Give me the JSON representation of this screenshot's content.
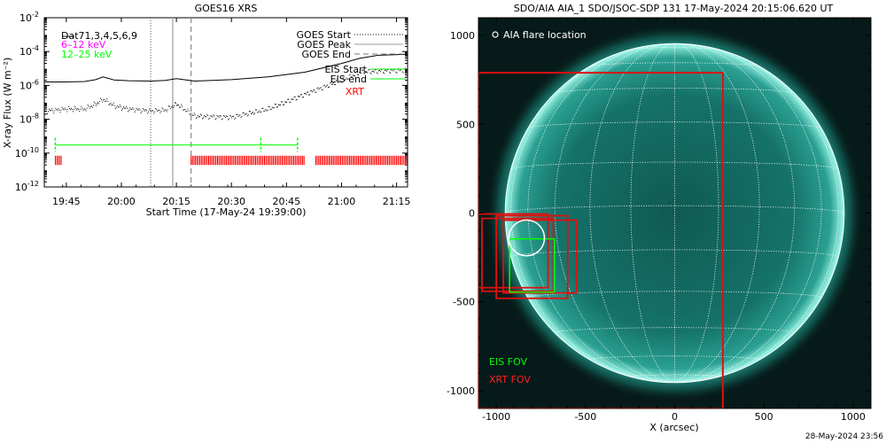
{
  "left_chart": {
    "title": "GOES16 XRS",
    "ylabel": "X-ray Flux (W m⁻²)",
    "xlabel": "Start Time (17-May-24 19:39:00)",
    "legend_left": [
      {
        "text": "D̶a̶t71,3,4,5,6,9",
        "color": "#000000"
      },
      {
        "text": "6–12 keV",
        "color": "#ff00ff"
      },
      {
        "text": "12–25 keV",
        "color": "#00ff00"
      }
    ],
    "legend_right": [
      {
        "text": "GOES Start",
        "color": "#000000",
        "dash": "2,2"
      },
      {
        "text": "GOES Peak",
        "color": "#000000",
        "dash": ""
      },
      {
        "text": "GOES End",
        "color": "#000000",
        "dash": "6,4"
      },
      {
        "text": "EIS Start",
        "color": "#000000",
        "line": "#00ff00"
      },
      {
        "text": "EIS end",
        "color": "#000000",
        "line": "#00ff00"
      },
      {
        "text": "XRT",
        "color": "#ff0000"
      }
    ]
  },
  "right_chart": {
    "title": "SDO/AIA AIA_1 SDO/JSOC-SDP 131 17-May-2024 20:15:06.620 UT",
    "legend_flare": "AIA flare location",
    "xlabel": "X (arcsec)",
    "eis_label": "EIS FOV",
    "xrt_label": "XRT FOV"
  },
  "footer": "28-May-2024 23:56",
  "chart_data": [
    {
      "type": "line",
      "title": "GOES16 XRS",
      "ylabel": "X-ray Flux (W m⁻²)",
      "xlabel": "Start Time (17-May-24 19:39:00)",
      "xlim": [
        "19:39",
        "21:18"
      ],
      "ylim": [
        1e-12,
        0.01
      ],
      "yscale": "log",
      "x_ticks": [
        "19:45",
        "20:00",
        "20:15",
        "20:30",
        "20:45",
        "21:00",
        "21:15"
      ],
      "y_ticks": [
        "10^-12",
        "10^-10",
        "10^-8",
        "10^-6",
        "10^-4",
        "10^-2"
      ],
      "series": [
        {
          "name": "12–25 keV",
          "color": "#000000",
          "x": [
            "19:39",
            "19:45",
            "19:50",
            "19:53",
            "19:55",
            "19:58",
            "20:02",
            "20:08",
            "20:12",
            "20:15",
            "20:17",
            "20:20",
            "20:30",
            "20:40",
            "20:50",
            "21:00",
            "21:05",
            "21:10",
            "21:18"
          ],
          "y": [
            1.6e-06,
            1.6e-06,
            1.7e-06,
            2.2e-06,
            3.2e-06,
            2.1e-06,
            1.9e-06,
            1.8e-06,
            2e-06,
            2.5e-06,
            2.2e-06,
            1.8e-06,
            2.2e-06,
            3.2e-06,
            6e-06,
            2e-05,
            4e-05,
            6e-05,
            7e-05
          ]
        },
        {
          "name": "Data",
          "color": "#000000",
          "style": "points",
          "x": [
            "19:39",
            "19:45",
            "19:50",
            "19:53",
            "19:55",
            "19:58",
            "20:02",
            "20:08",
            "20:12",
            "20:15",
            "20:17",
            "20:20",
            "20:30",
            "20:40",
            "20:50",
            "21:00",
            "21:05",
            "21:10",
            "21:18"
          ],
          "y": [
            3e-08,
            4e-08,
            4e-08,
            8e-08,
            1.5e-07,
            6e-08,
            4e-08,
            3e-08,
            3.5e-08,
            8e-08,
            4e-08,
            1.5e-08,
            1.3e-08,
            4e-08,
            3e-07,
            2e-06,
            6e-06,
            7e-06,
            8e-06
          ]
        }
      ],
      "vlines": [
        {
          "name": "GOES Start",
          "x": "20:08",
          "style": "dotted"
        },
        {
          "name": "GOES Peak",
          "x": "20:14",
          "style": "solid"
        },
        {
          "name": "GOES End",
          "x": "20:19",
          "style": "dashed"
        }
      ],
      "eis": {
        "color": "#00ff00",
        "start": [
          "19:42",
          "20:38"
        ],
        "end": [
          "20:48"
        ]
      },
      "xrt": {
        "color": "#ff0000",
        "intervals": [
          [
            "19:42",
            "19:44"
          ],
          [
            "20:19",
            "20:50"
          ],
          [
            "20:53",
            "21:18"
          ]
        ]
      }
    },
    {
      "type": "image",
      "title": "SDO/AIA AIA_1 SDO/JSOC-SDP 131 17-May-2024 20:15:06.620 UT",
      "xlabel": "X (arcsec)",
      "xlim": [
        -1100,
        1100
      ],
      "ylim": [
        -1100,
        1100
      ],
      "x_ticks": [
        -1000,
        -500,
        0,
        500,
        1000
      ],
      "y_ticks": [
        -1000,
        -500,
        0,
        500,
        1000
      ],
      "solar_radius": 950,
      "flare_location": {
        "x": -830,
        "y": -140,
        "radius": 100
      },
      "xrt_fov": [
        {
          "x0": -1100,
          "x1": 270,
          "y0": -1100,
          "y1": 790
        },
        {
          "x0": -1100,
          "x1": -710,
          "y0": -420,
          "y1": -5
        },
        {
          "x0": -1080,
          "x1": -680,
          "y0": -440,
          "y1": -30
        },
        {
          "x0": -960,
          "x1": -550,
          "y0": -450,
          "y1": -40
        },
        {
          "x0": -1000,
          "x1": -600,
          "y0": -480,
          "y1": -15
        }
      ],
      "eis_fov": [
        {
          "x0": -925,
          "x1": -675,
          "y0": -445,
          "y1": -145
        }
      ]
    }
  ]
}
